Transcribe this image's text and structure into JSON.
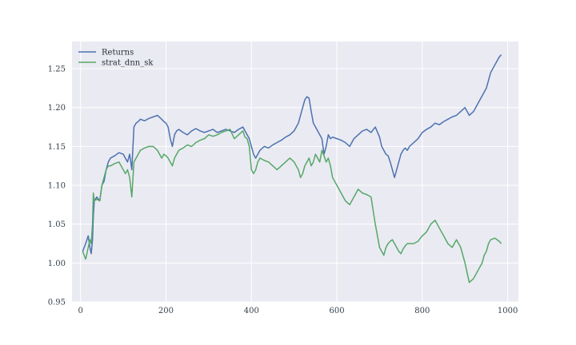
{
  "chart_data": {
    "type": "line",
    "title": "",
    "xlabel": "",
    "ylabel": "",
    "xlim": [
      -20,
      1025
    ],
    "ylim": [
      0.95,
      1.285
    ],
    "xticks": [
      0,
      200,
      400,
      600,
      800,
      1000
    ],
    "xtick_labels": [
      "0",
      "200",
      "400",
      "600",
      "800",
      "1000"
    ],
    "yticks": [
      0.95,
      1.0,
      1.05,
      1.1,
      1.15,
      1.2,
      1.25
    ],
    "ytick_labels": [
      "0.95",
      "1.00",
      "1.05",
      "1.10",
      "1.15",
      "1.20",
      "1.25"
    ],
    "grid": true,
    "legend_position": "top-left",
    "background": "#eaeaf2",
    "series": [
      {
        "name": "Returns",
        "color": "#4c72b0",
        "x": [
          5,
          12,
          18,
          22,
          25,
          28,
          30,
          32,
          38,
          45,
          50,
          55,
          60,
          65,
          70,
          80,
          90,
          100,
          105,
          110,
          115,
          120,
          125,
          130,
          135,
          140,
          150,
          160,
          170,
          180,
          190,
          195,
          200,
          205,
          210,
          215,
          220,
          225,
          230,
          240,
          250,
          260,
          270,
          280,
          290,
          300,
          310,
          320,
          330,
          340,
          350,
          360,
          370,
          380,
          385,
          390,
          395,
          400,
          405,
          410,
          415,
          420,
          430,
          440,
          450,
          460,
          470,
          480,
          490,
          500,
          510,
          515,
          520,
          525,
          530,
          535,
          540,
          545,
          550,
          555,
          560,
          565,
          570,
          575,
          580,
          585,
          590,
          600,
          610,
          620,
          630,
          640,
          650,
          660,
          670,
          680,
          690,
          700,
          705,
          710,
          715,
          720,
          725,
          730,
          735,
          740,
          745,
          750,
          755,
          760,
          765,
          770,
          780,
          790,
          800,
          810,
          820,
          830,
          840,
          850,
          860,
          870,
          880,
          890,
          900,
          910,
          920,
          930,
          940,
          945,
          950,
          955,
          960,
          970,
          975,
          980,
          985
        ],
        "y": [
          1.015,
          1.025,
          1.035,
          1.02,
          1.012,
          1.03,
          1.06,
          1.08,
          1.085,
          1.08,
          1.1,
          1.105,
          1.12,
          1.13,
          1.135,
          1.138,
          1.142,
          1.14,
          1.135,
          1.13,
          1.14,
          1.12,
          1.175,
          1.18,
          1.182,
          1.185,
          1.183,
          1.186,
          1.188,
          1.19,
          1.185,
          1.182,
          1.18,
          1.175,
          1.16,
          1.15,
          1.165,
          1.17,
          1.172,
          1.168,
          1.165,
          1.17,
          1.173,
          1.17,
          1.168,
          1.17,
          1.172,
          1.168,
          1.17,
          1.172,
          1.17,
          1.168,
          1.172,
          1.175,
          1.17,
          1.165,
          1.16,
          1.15,
          1.14,
          1.135,
          1.14,
          1.145,
          1.15,
          1.148,
          1.152,
          1.155,
          1.158,
          1.162,
          1.165,
          1.17,
          1.18,
          1.19,
          1.2,
          1.21,
          1.214,
          1.212,
          1.195,
          1.18,
          1.175,
          1.17,
          1.165,
          1.16,
          1.14,
          1.15,
          1.165,
          1.16,
          1.162,
          1.16,
          1.158,
          1.155,
          1.15,
          1.16,
          1.165,
          1.17,
          1.172,
          1.168,
          1.175,
          1.162,
          1.15,
          1.145,
          1.14,
          1.138,
          1.13,
          1.12,
          1.11,
          1.12,
          1.13,
          1.14,
          1.145,
          1.148,
          1.145,
          1.15,
          1.155,
          1.16,
          1.168,
          1.172,
          1.175,
          1.18,
          1.178,
          1.182,
          1.185,
          1.188,
          1.19,
          1.195,
          1.2,
          1.19,
          1.195,
          1.205,
          1.215,
          1.22,
          1.225,
          1.235,
          1.245,
          1.255,
          1.26,
          1.265,
          1.268
        ]
      },
      {
        "name": "strat_dnn_sk",
        "color": "#55a868",
        "x": [
          5,
          12,
          18,
          22,
          25,
          28,
          30,
          32,
          38,
          45,
          50,
          55,
          60,
          65,
          70,
          80,
          90,
          100,
          105,
          110,
          115,
          120,
          125,
          130,
          135,
          140,
          150,
          160,
          170,
          180,
          190,
          195,
          200,
          205,
          210,
          215,
          220,
          225,
          230,
          240,
          250,
          260,
          270,
          280,
          290,
          300,
          310,
          320,
          330,
          340,
          350,
          360,
          370,
          380,
          385,
          390,
          395,
          400,
          405,
          410,
          415,
          420,
          430,
          440,
          450,
          460,
          470,
          480,
          490,
          500,
          510,
          515,
          520,
          525,
          530,
          535,
          540,
          545,
          550,
          555,
          560,
          565,
          570,
          575,
          580,
          585,
          590,
          600,
          610,
          620,
          630,
          640,
          650,
          660,
          670,
          680,
          690,
          700,
          705,
          710,
          715,
          720,
          725,
          730,
          735,
          740,
          745,
          750,
          755,
          760,
          765,
          770,
          780,
          790,
          800,
          810,
          820,
          830,
          840,
          850,
          860,
          870,
          880,
          890,
          900,
          910,
          920,
          930,
          940,
          945,
          950,
          955,
          960,
          970,
          975,
          980,
          985
        ],
        "y": [
          1.015,
          1.005,
          1.02,
          1.03,
          1.025,
          1.05,
          1.09,
          1.08,
          1.082,
          1.08,
          1.1,
          1.11,
          1.12,
          1.125,
          1.125,
          1.128,
          1.13,
          1.12,
          1.115,
          1.12,
          1.11,
          1.085,
          1.13,
          1.135,
          1.14,
          1.145,
          1.148,
          1.15,
          1.15,
          1.145,
          1.135,
          1.14,
          1.138,
          1.135,
          1.13,
          1.125,
          1.135,
          1.14,
          1.145,
          1.148,
          1.152,
          1.15,
          1.155,
          1.158,
          1.16,
          1.165,
          1.163,
          1.165,
          1.168,
          1.17,
          1.172,
          1.16,
          1.165,
          1.17,
          1.162,
          1.16,
          1.15,
          1.12,
          1.115,
          1.12,
          1.13,
          1.135,
          1.132,
          1.13,
          1.125,
          1.12,
          1.125,
          1.13,
          1.135,
          1.13,
          1.12,
          1.11,
          1.115,
          1.125,
          1.13,
          1.135,
          1.125,
          1.13,
          1.14,
          1.135,
          1.13,
          1.145,
          1.138,
          1.13,
          1.135,
          1.125,
          1.11,
          1.1,
          1.09,
          1.08,
          1.075,
          1.085,
          1.095,
          1.09,
          1.088,
          1.085,
          1.05,
          1.02,
          1.015,
          1.01,
          1.02,
          1.025,
          1.028,
          1.03,
          1.025,
          1.02,
          1.015,
          1.012,
          1.018,
          1.022,
          1.025,
          1.025,
          1.025,
          1.028,
          1.035,
          1.04,
          1.05,
          1.055,
          1.045,
          1.035,
          1.025,
          1.02,
          1.03,
          1.02,
          1.0,
          0.975,
          0.98,
          0.99,
          1.0,
          1.01,
          1.015,
          1.025,
          1.03,
          1.032,
          1.03,
          1.028,
          1.025
        ]
      }
    ]
  }
}
